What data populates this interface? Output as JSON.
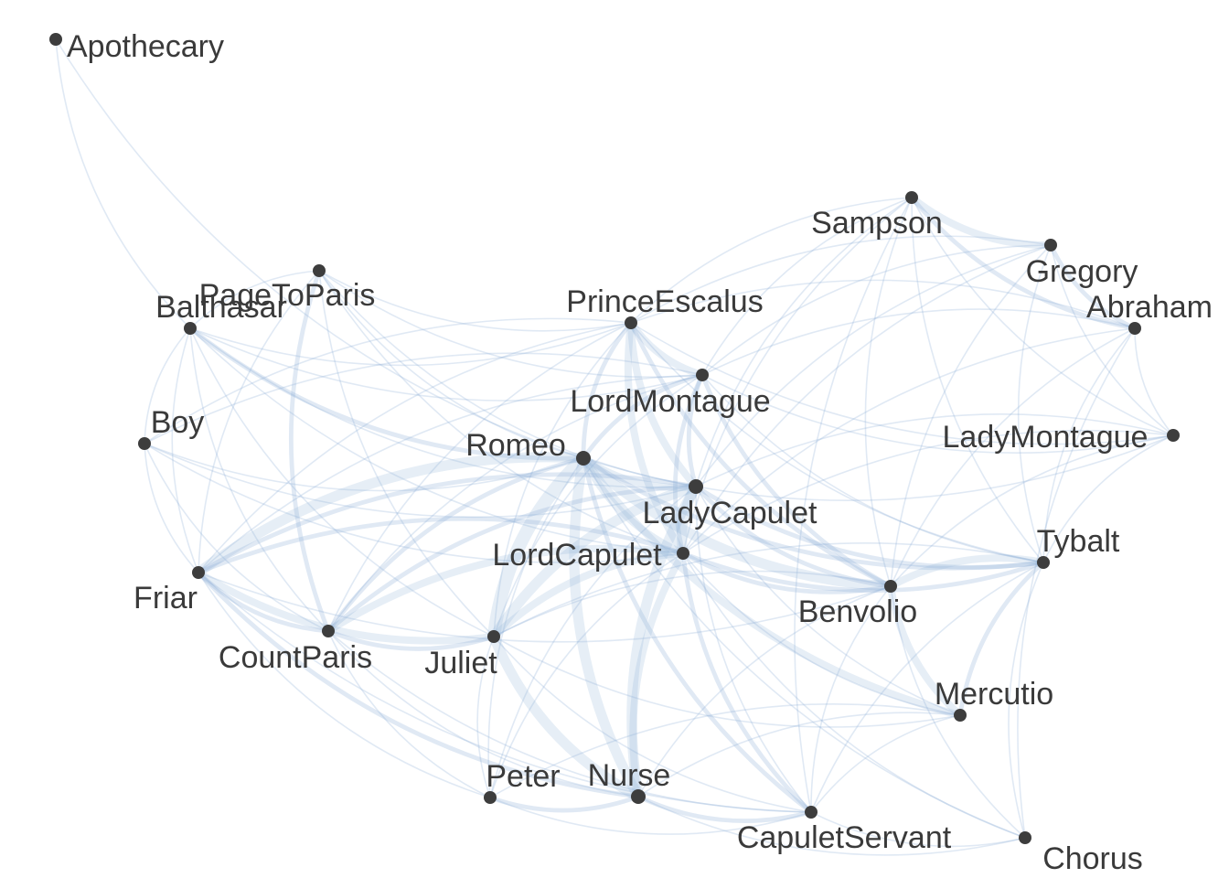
{
  "graph": {
    "nodes": [
      {
        "id": "Apothecary",
        "label": "Apothecary"
      },
      {
        "id": "Sampson",
        "label": "Sampson"
      },
      {
        "id": "Gregory",
        "label": "Gregory"
      },
      {
        "id": "Abraham",
        "label": "Abraham"
      },
      {
        "id": "PageToParis",
        "label": "PageToParis"
      },
      {
        "id": "Balthasar",
        "label": "Balthasar"
      },
      {
        "id": "PrinceEscalus",
        "label": "PrinceEscalus"
      },
      {
        "id": "LordMontague",
        "label": "LordMontague"
      },
      {
        "id": "Boy",
        "label": "Boy"
      },
      {
        "id": "Romeo",
        "label": "Romeo"
      },
      {
        "id": "LadyMontague",
        "label": "LadyMontague"
      },
      {
        "id": "LadyCapulet",
        "label": "LadyCapulet"
      },
      {
        "id": "LordCapulet",
        "label": "LordCapulet"
      },
      {
        "id": "Tybalt",
        "label": "Tybalt"
      },
      {
        "id": "Friar",
        "label": "Friar"
      },
      {
        "id": "Benvolio",
        "label": "Benvolio"
      },
      {
        "id": "CountParis",
        "label": "CountParis"
      },
      {
        "id": "Juliet",
        "label": "Juliet"
      },
      {
        "id": "Mercutio",
        "label": "Mercutio"
      },
      {
        "id": "Peter",
        "label": "Peter"
      },
      {
        "id": "Nurse",
        "label": "Nurse"
      },
      {
        "id": "CapuletServant",
        "label": "CapuletServant"
      },
      {
        "id": "Chorus",
        "label": "Chorus"
      }
    ],
    "edges": [
      [
        "Apothecary",
        "Balthasar",
        1
      ],
      [
        "Apothecary",
        "Romeo",
        1
      ],
      [
        "Sampson",
        "Gregory",
        3
      ],
      [
        "Sampson",
        "Abraham",
        2
      ],
      [
        "Sampson",
        "LadyMontague",
        1
      ],
      [
        "Sampson",
        "Tybalt",
        1
      ],
      [
        "Sampson",
        "Benvolio",
        1
      ],
      [
        "Sampson",
        "LordMontague",
        1
      ],
      [
        "Sampson",
        "LordCapulet",
        1
      ],
      [
        "Sampson",
        "PrinceEscalus",
        1
      ],
      [
        "Sampson",
        "CapuletServant",
        1
      ],
      [
        "Sampson",
        "LadyCapulet",
        1
      ],
      [
        "Gregory",
        "Abraham",
        2
      ],
      [
        "Gregory",
        "LadyMontague",
        1
      ],
      [
        "Gregory",
        "Tybalt",
        1
      ],
      [
        "Gregory",
        "Benvolio",
        1
      ],
      [
        "Gregory",
        "LordMontague",
        1
      ],
      [
        "Gregory",
        "LordCapulet",
        1
      ],
      [
        "Gregory",
        "PrinceEscalus",
        1
      ],
      [
        "Gregory",
        "LadyCapulet",
        1
      ],
      [
        "Abraham",
        "LadyMontague",
        1
      ],
      [
        "Abraham",
        "Tybalt",
        1
      ],
      [
        "Abraham",
        "Benvolio",
        1
      ],
      [
        "Abraham",
        "LordMontague",
        1
      ],
      [
        "Abraham",
        "LordCapulet",
        1
      ],
      [
        "Abraham",
        "PrinceEscalus",
        1
      ],
      [
        "Abraham",
        "Chorus",
        1
      ],
      [
        "PageToParis",
        "Balthasar",
        1
      ],
      [
        "PageToParis",
        "PrinceEscalus",
        1
      ],
      [
        "PageToParis",
        "LordMontague",
        1
      ],
      [
        "PageToParis",
        "Romeo",
        1
      ],
      [
        "PageToParis",
        "LordCapulet",
        1
      ],
      [
        "PageToParis",
        "LadyCapulet",
        1
      ],
      [
        "PageToParis",
        "Friar",
        1
      ],
      [
        "PageToParis",
        "CountParis",
        2
      ],
      [
        "PageToParis",
        "Juliet",
        1
      ],
      [
        "Balthasar",
        "Romeo",
        2
      ],
      [
        "Balthasar",
        "Friar",
        1
      ],
      [
        "Balthasar",
        "LordMontague",
        1
      ],
      [
        "Balthasar",
        "PrinceEscalus",
        1
      ],
      [
        "Balthasar",
        "LordCapulet",
        1
      ],
      [
        "Balthasar",
        "LadyCapulet",
        1
      ],
      [
        "Balthasar",
        "CountParis",
        1
      ],
      [
        "Balthasar",
        "Boy",
        1
      ],
      [
        "Balthasar",
        "Juliet",
        1
      ],
      [
        "PrinceEscalus",
        "LordMontague",
        3
      ],
      [
        "PrinceEscalus",
        "Romeo",
        2
      ],
      [
        "PrinceEscalus",
        "LadyCapulet",
        3
      ],
      [
        "PrinceEscalus",
        "LordCapulet",
        3
      ],
      [
        "PrinceEscalus",
        "Benvolio",
        2
      ],
      [
        "PrinceEscalus",
        "Tybalt",
        1
      ],
      [
        "PrinceEscalus",
        "Friar",
        1
      ],
      [
        "PrinceEscalus",
        "CountParis",
        1
      ],
      [
        "PrinceEscalus",
        "Juliet",
        1
      ],
      [
        "PrinceEscalus",
        "LadyMontague",
        1
      ],
      [
        "PrinceEscalus",
        "Boy",
        1
      ],
      [
        "LordMontague",
        "Romeo",
        2
      ],
      [
        "LordMontague",
        "LadyCapulet",
        2
      ],
      [
        "LordMontague",
        "LordCapulet",
        2
      ],
      [
        "LordMontague",
        "Benvolio",
        2
      ],
      [
        "LordMontague",
        "LadyMontague",
        1
      ],
      [
        "LordMontague",
        "Friar",
        1
      ],
      [
        "LordMontague",
        "CountParis",
        1
      ],
      [
        "LordMontague",
        "Juliet",
        1
      ],
      [
        "LordMontague",
        "Tybalt",
        1
      ],
      [
        "LordMontague",
        "Boy",
        1
      ],
      [
        "Boy",
        "Friar",
        1
      ],
      [
        "Boy",
        "Romeo",
        1
      ],
      [
        "Boy",
        "LordCapulet",
        1
      ],
      [
        "Boy",
        "CountParis",
        1
      ],
      [
        "Boy",
        "LadyCapulet",
        1
      ],
      [
        "Romeo",
        "Juliet",
        5
      ],
      [
        "Romeo",
        "Nurse",
        4
      ],
      [
        "Romeo",
        "Benvolio",
        4
      ],
      [
        "Romeo",
        "Friar",
        4
      ],
      [
        "Romeo",
        "Mercutio",
        3
      ],
      [
        "Romeo",
        "LadyCapulet",
        3
      ],
      [
        "Romeo",
        "LordCapulet",
        3
      ],
      [
        "Romeo",
        "CountParis",
        2
      ],
      [
        "Romeo",
        "Tybalt",
        2
      ],
      [
        "Romeo",
        "Peter",
        1
      ],
      [
        "Romeo",
        "CapuletServant",
        2
      ],
      [
        "Romeo",
        "LadyMontague",
        1
      ],
      [
        "Romeo",
        "Chorus",
        1
      ],
      [
        "LadyMontague",
        "Benvolio",
        1
      ],
      [
        "LadyMontague",
        "LordCapulet",
        1
      ],
      [
        "LadyMontague",
        "LadyCapulet",
        1
      ],
      [
        "LadyMontague",
        "Tybalt",
        1
      ],
      [
        "LadyCapulet",
        "LordCapulet",
        4
      ],
      [
        "LadyCapulet",
        "Nurse",
        4
      ],
      [
        "LadyCapulet",
        "Juliet",
        4
      ],
      [
        "LadyCapulet",
        "Tybalt",
        2
      ],
      [
        "LadyCapulet",
        "Benvolio",
        2
      ],
      [
        "LadyCapulet",
        "CountParis",
        2
      ],
      [
        "LadyCapulet",
        "Friar",
        2
      ],
      [
        "LadyCapulet",
        "CapuletServant",
        1
      ],
      [
        "LadyCapulet",
        "Mercutio",
        1
      ],
      [
        "LadyCapulet",
        "Peter",
        1
      ],
      [
        "LordCapulet",
        "Juliet",
        3
      ],
      [
        "LordCapulet",
        "Nurse",
        3
      ],
      [
        "LordCapulet",
        "Tybalt",
        2
      ],
      [
        "LordCapulet",
        "CountParis",
        3
      ],
      [
        "LordCapulet",
        "Friar",
        2
      ],
      [
        "LordCapulet",
        "CapuletServant",
        2
      ],
      [
        "LordCapulet",
        "Benvolio",
        2
      ],
      [
        "LordCapulet",
        "Mercutio",
        1
      ],
      [
        "LordCapulet",
        "Peter",
        1
      ],
      [
        "LordCapulet",
        "Chorus",
        1
      ],
      [
        "Tybalt",
        "Benvolio",
        3
      ],
      [
        "Tybalt",
        "Mercutio",
        2
      ],
      [
        "Tybalt",
        "Juliet",
        1
      ],
      [
        "Tybalt",
        "Chorus",
        1
      ],
      [
        "Tybalt",
        "CapuletServant",
        1
      ],
      [
        "Friar",
        "Juliet",
        3
      ],
      [
        "Friar",
        "CountParis",
        2
      ],
      [
        "Friar",
        "Nurse",
        2
      ],
      [
        "Friar",
        "Peter",
        1
      ],
      [
        "Friar",
        "CapuletServant",
        1
      ],
      [
        "Friar",
        "Benvolio",
        1
      ],
      [
        "Benvolio",
        "Mercutio",
        3
      ],
      [
        "Benvolio",
        "Nurse",
        1
      ],
      [
        "Benvolio",
        "CapuletServant",
        1
      ],
      [
        "Benvolio",
        "Chorus",
        1
      ],
      [
        "Benvolio",
        "Juliet",
        1
      ],
      [
        "CountParis",
        "Juliet",
        2
      ],
      [
        "CountParis",
        "Nurse",
        1
      ],
      [
        "CountParis",
        "CapuletServant",
        1
      ],
      [
        "CountParis",
        "Peter",
        1
      ],
      [
        "Juliet",
        "Nurse",
        4
      ],
      [
        "Juliet",
        "Peter",
        1
      ],
      [
        "Juliet",
        "CapuletServant",
        1
      ],
      [
        "Juliet",
        "Mercutio",
        1
      ],
      [
        "Mercutio",
        "Nurse",
        1
      ],
      [
        "Mercutio",
        "Peter",
        1
      ],
      [
        "Mercutio",
        "CapuletServant",
        1
      ],
      [
        "Peter",
        "Nurse",
        2
      ],
      [
        "Peter",
        "CapuletServant",
        1
      ],
      [
        "Nurse",
        "CapuletServant",
        2
      ],
      [
        "Nurse",
        "Chorus",
        1
      ],
      [
        "CapuletServant",
        "Chorus",
        1
      ]
    ]
  }
}
